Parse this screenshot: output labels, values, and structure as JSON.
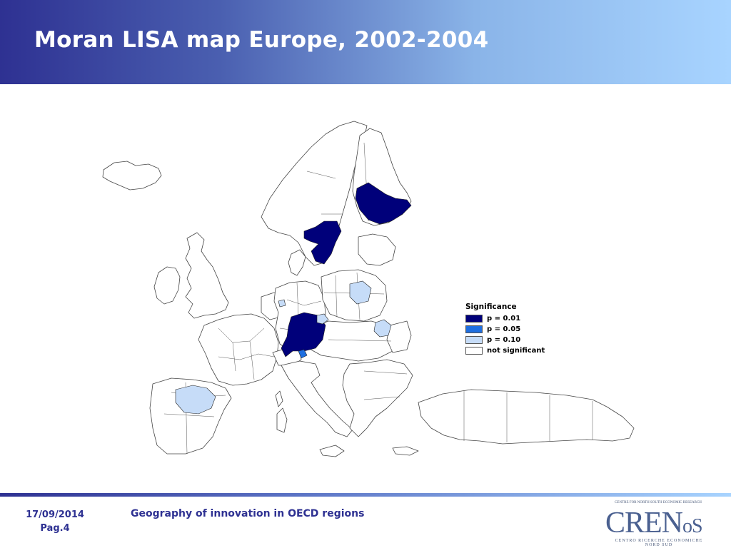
{
  "slide": {
    "title": "Moran LISA map Europe, 2002-2004"
  },
  "legend": {
    "title": "Significance",
    "items": [
      {
        "label": "p = 0.01",
        "color": "#00007a"
      },
      {
        "label": "p = 0.05",
        "color": "#1f6fe0"
      },
      {
        "label": "p = 0.10",
        "color": "#c6dcf8"
      },
      {
        "label": "not significant",
        "color": "#ffffff"
      }
    ]
  },
  "map": {
    "region_stroke": "#444444",
    "highlighted_regions": [
      {
        "name": "finland-east",
        "significance": "p = 0.01"
      },
      {
        "name": "sweden-south",
        "significance": "p = 0.01"
      },
      {
        "name": "germany-south",
        "significance": "p = 0.01"
      },
      {
        "name": "switzerland-cluster",
        "significance": "p = 0.05"
      },
      {
        "name": "spain-castilla-leon",
        "significance": "p = 0.10"
      },
      {
        "name": "poland-central",
        "significance": "p = 0.10"
      },
      {
        "name": "hungary-budapest",
        "significance": "p = 0.10"
      },
      {
        "name": "czech-prague",
        "significance": "p = 0.10"
      },
      {
        "name": "netherlands-south",
        "significance": "p = 0.10"
      }
    ]
  },
  "footer": {
    "date": "17/09/2014",
    "page": "Pag.4",
    "subtitle": "Geography of innovation in OECD regions"
  },
  "logo": {
    "top_text": "CENTRE FOR NORTH SOUTH ECONOMIC RESEARCH",
    "name_big": "CREN",
    "name_small": "oS",
    "bottom_text": "CENTRO RICERCHE ECONOMICHE NORD SUD"
  }
}
